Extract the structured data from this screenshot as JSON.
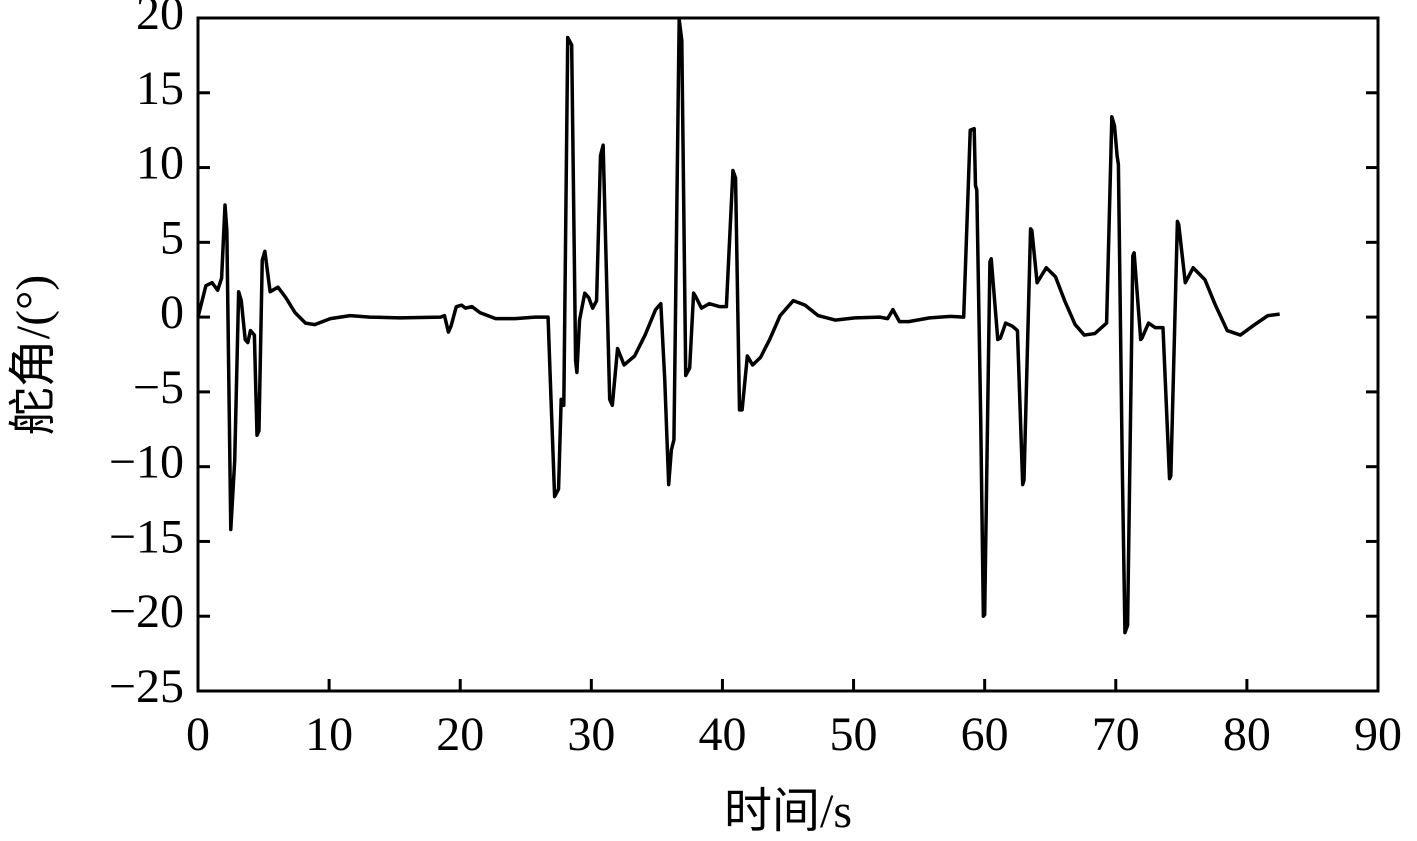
{
  "chart_data": {
    "type": "line",
    "x_label": "时间/s",
    "y_label": "舵角/(°)",
    "xlim": [
      0,
      90
    ],
    "ylim": [
      -25,
      20
    ],
    "xticks": [
      0,
      10,
      20,
      30,
      40,
      50,
      60,
      70,
      80,
      90
    ],
    "yticks": [
      {
        "value": -25,
        "label": "−25"
      },
      {
        "value": -20,
        "label": "−20"
      },
      {
        "value": -15,
        "label": "−15"
      },
      {
        "value": -10,
        "label": "−10"
      },
      {
        "value": -5,
        "label": "−5"
      },
      0,
      5,
      10,
      15,
      20
    ],
    "x": [
      0,
      0.6,
      1.07,
      1.5,
      1.8,
      2.06,
      2.2,
      2.5,
      2.8,
      3.1,
      3.3,
      3.6,
      3.8,
      4.0,
      4.3,
      4.5,
      4.65,
      4.9,
      5.1,
      5.5,
      5.7,
      6.1,
      6.7,
      7.4,
      8.2,
      8.9,
      10.1,
      11.6,
      13.1,
      15.4,
      18.5,
      18.8,
      19.1,
      19.3,
      19.7,
      20.1,
      20.4,
      20.9,
      21.5,
      22.7,
      24.2,
      25.7,
      26.7,
      26.9,
      27.2,
      27.5,
      27.7,
      27.9,
      28.2,
      28.5,
      28.8,
      28.9,
      29.1,
      29.5,
      29.8,
      30.1,
      30.4,
      30.7,
      30.9,
      31.4,
      31.6,
      32.0,
      32.5,
      33.3,
      34.1,
      34.9,
      35.3,
      35.6,
      35.9,
      36.1,
      36.3,
      36.7,
      36.9,
      37.2,
      37.5,
      37.8,
      38.0,
      38.4,
      39.0,
      39.8,
      40.3,
      40.8,
      41.0,
      41.3,
      41.5,
      41.9,
      42.3,
      42.9,
      43.6,
      44.4,
      45.4,
      46.3,
      47.3,
      48.6,
      50.1,
      52.0,
      52.6,
      53.0,
      53.5,
      54.2,
      55.8,
      57.4,
      58.4,
      58.9,
      59.2,
      59.3,
      59.4,
      59.7,
      59.9,
      60.0,
      60.4,
      60.5,
      61.0,
      61.2,
      61.6,
      62.1,
      62.5,
      62.9,
      63.0,
      63.5,
      63.6,
      64.0,
      64.7,
      65.4,
      66.1,
      66.9,
      67.6,
      68.4,
      69.3,
      69.7,
      69.9,
      70.1,
      70.2,
      70.5,
      70.7,
      70.9,
      71.3,
      71.4,
      71.9,
      72.0,
      72.5,
      73.0,
      73.6,
      74.1,
      74.2,
      74.7,
      74.8,
      75.3,
      75.9,
      76.8,
      77.6,
      78.5,
      79.5,
      80.6,
      81.6,
      82.5
    ],
    "values": [
      0,
      2.1,
      2.3,
      1.8,
      2.6,
      7.5,
      5.8,
      -14.2,
      -9.6,
      1.7,
      1.1,
      -1.5,
      -1.7,
      -0.9,
      -1.2,
      -7.9,
      -7.6,
      3.8,
      4.4,
      1.7,
      1.8,
      2.0,
      1.3,
      0.3,
      -0.4,
      -0.5,
      -0.1,
      0.1,
      0,
      -0.05,
      0,
      0.1,
      -1.0,
      -0.6,
      0.7,
      0.8,
      0.6,
      0.7,
      0.3,
      -0.1,
      -0.1,
      0,
      0,
      -4.9,
      -12.0,
      -11.5,
      -5.5,
      -5.9,
      18.7,
      18.2,
      -2.9,
      -3.7,
      -0.2,
      1.6,
      1.3,
      0.6,
      1.1,
      10.8,
      11.5,
      -5.5,
      -5.9,
      -2.1,
      -3.2,
      -2.6,
      -1.2,
      0.5,
      0.9,
      -4.2,
      -11.2,
      -8.9,
      -8.2,
      19.9,
      18.5,
      -3.9,
      -3.4,
      1.6,
      1.3,
      0.6,
      0.9,
      0.7,
      0.7,
      9.8,
      9.3,
      -6.2,
      -6.2,
      -2.6,
      -3.2,
      -2.7,
      -1.5,
      0.1,
      1.1,
      0.8,
      0.1,
      -0.2,
      -0.05,
      0,
      -0.1,
      0.5,
      -0.3,
      -0.3,
      -0.05,
      0.05,
      0,
      12.5,
      12.6,
      8.8,
      8.5,
      -6.9,
      -20.0,
      -19.9,
      3.7,
      3.9,
      -1.5,
      -1.4,
      -0.4,
      -0.6,
      -0.9,
      -11.2,
      -10.9,
      5.9,
      5.8,
      2.3,
      3.3,
      2.7,
      1.1,
      -0.5,
      -1.2,
      -1.1,
      -0.4,
      13.4,
      12.8,
      10.8,
      10.2,
      -10.2,
      -21.1,
      -20.6,
      4.1,
      4.3,
      -1.5,
      -1.4,
      -0.4,
      -0.7,
      -0.7,
      -10.8,
      -10.6,
      6.4,
      6.2,
      2.3,
      3.3,
      2.5,
      0.8,
      -0.9,
      -1.2,
      -0.5,
      0.1,
      0.2
    ],
    "color": "#000000"
  }
}
